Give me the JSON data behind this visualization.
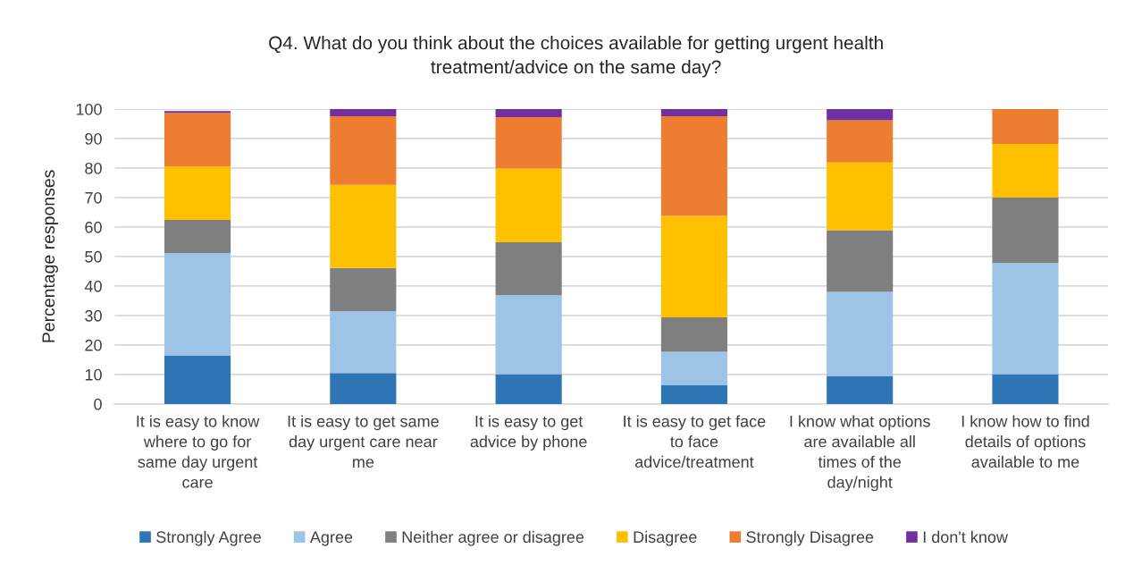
{
  "chart_data": {
    "type": "bar",
    "stacked": true,
    "title": "Q4. What do you think about the choices available for getting urgent health\ntreatment/advice on the same day?",
    "ylabel": "Percentage responses",
    "categories": [
      "It is easy to know\nwhere to go for\nsame day urgent\ncare",
      "It is easy to get same\nday urgent care near\nme",
      "It is easy to get\nadvice by phone",
      "It is easy to get face\nto face\nadvice/treatment",
      "I know what options\nare available all\ntimes of the\nday/night",
      "I know how to find\ndetails of options\navailable to me"
    ],
    "series": [
      {
        "name": "Strongly Agree",
        "color": "#2e75b6",
        "values": [
          16.5,
          10.5,
          10.1,
          6.3,
          9.5,
          10.1
        ]
      },
      {
        "name": "Agree",
        "color": "#9dc3e6",
        "values": [
          34.7,
          20.9,
          26.8,
          11.4,
          28.5,
          37.7
        ]
      },
      {
        "name": "Neither agree or disagree",
        "color": "#7f7f7f",
        "values": [
          11.2,
          14.7,
          17.9,
          11.7,
          20.9,
          22.2
        ]
      },
      {
        "name": "Disagree",
        "color": "#ffc000",
        "values": [
          18.1,
          28.2,
          25.0,
          34.4,
          23.0,
          18.2
        ]
      },
      {
        "name": "Strongly Disagree",
        "color": "#ed7d31",
        "values": [
          18.2,
          23.3,
          17.5,
          33.8,
          14.3,
          11.8
        ]
      },
      {
        "name": "I don't know",
        "color": "#7030a0",
        "values": [
          0.6,
          2.4,
          2.7,
          2.4,
          3.8,
          0
        ]
      }
    ],
    "ylim": [
      0,
      100
    ],
    "yticks": [
      0,
      10,
      20,
      30,
      40,
      50,
      60,
      70,
      80,
      90,
      100
    ],
    "grid": "y",
    "legend": "bottom"
  }
}
